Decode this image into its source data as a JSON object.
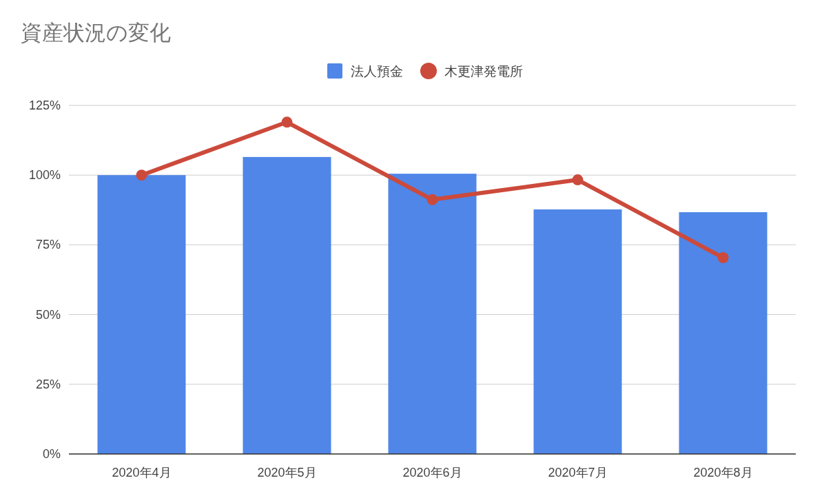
{
  "chart_data": {
    "type": "bar",
    "title": "資産状況の変化",
    "categories": [
      "2020年4月",
      "2020年5月",
      "2020年6月",
      "2020年7月",
      "2020年8月"
    ],
    "series": [
      {
        "name": "法人預金",
        "color": "#4f86e8",
        "values": [
          100,
          106.5,
          100.5,
          87.7,
          86.7
        ]
      },
      {
        "name": "木更津発電所",
        "type": "line",
        "color": "#cc4a3b",
        "marker": "circle",
        "values": [
          100,
          119,
          91.2,
          98.3,
          70.4
        ]
      }
    ],
    "ylim": [
      0,
      125
    ],
    "yticks": [
      {
        "value": 0,
        "label": "0%"
      },
      {
        "value": 25,
        "label": "25%"
      },
      {
        "value": 50,
        "label": "50%"
      },
      {
        "value": 75,
        "label": "75%"
      },
      {
        "value": 100,
        "label": "100%"
      },
      {
        "value": 125,
        "label": "125%"
      }
    ],
    "grid": "y",
    "legend": "top"
  }
}
